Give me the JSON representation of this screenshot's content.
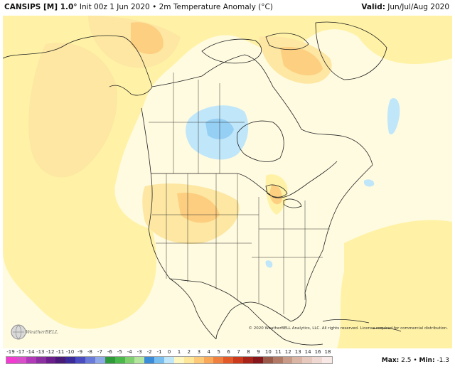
{
  "header": {
    "model": "CANSIPS [M] 1.0°",
    "init": "Init 00z 1 Jun 2020",
    "separator": "•",
    "variable": "2m Temperature Anomaly (°C)",
    "valid_label": "Valid:",
    "valid_value": "Jun/Jul/Aug 2020"
  },
  "copyright": "© 2020 WeatherBELL Analytics, LLC. All rights reserved. License required for commercial distribution.",
  "logo_text": "WeatherBELL",
  "stats": {
    "max_label": "Max:",
    "max_value": "2.5",
    "min_label": "Min:",
    "min_value": "-1.3",
    "separator": "•"
  },
  "colorbar": {
    "labels": [
      "-19",
      "-17",
      "-14",
      "-13",
      "-12",
      "-11",
      "-10",
      "-9",
      "-8",
      "-7",
      "-6",
      "-5",
      "-4",
      "-3",
      "-2",
      "-1",
      "0",
      "1",
      "2",
      "3",
      "4",
      "5",
      "6",
      "7",
      "8",
      "9",
      "10",
      "11",
      "12",
      "13",
      "14",
      "16",
      "18"
    ],
    "colors": [
      "#f23bd0",
      "#d94ec9",
      "#b03ab8",
      "#8c2fa0",
      "#6a1f8c",
      "#4a1a78",
      "#3a2a9a",
      "#4a4cc0",
      "#6a7ad8",
      "#8fa8e8",
      "#2f9a3a",
      "#4ab84a",
      "#80d070",
      "#b4e6a0",
      "#3a8cd8",
      "#78bff0",
      "#c0e6fa",
      "#fff7c0",
      "#fee69a",
      "#fdca7a",
      "#f9a85a",
      "#f08040",
      "#e35a2a",
      "#cc3a1e",
      "#a8241a",
      "#84161c",
      "#9a5a4a",
      "#b07a66",
      "#c89a88",
      "#dab4a4",
      "#e6c8bc",
      "#f0d8d2",
      "#f8e8e6"
    ]
  }
}
